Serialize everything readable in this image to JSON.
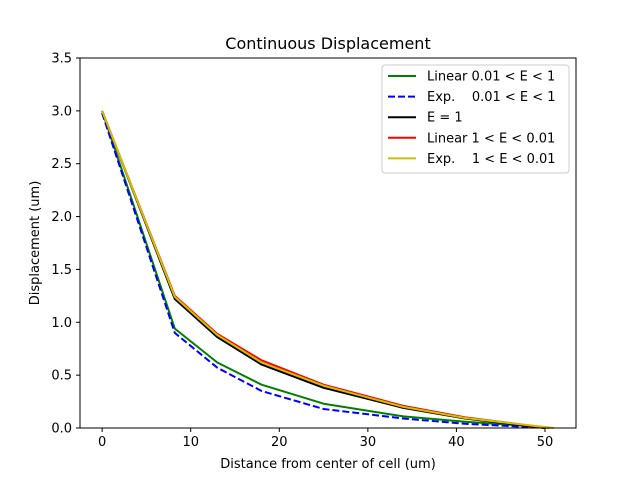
{
  "chart_data": {
    "type": "line",
    "title": "Continuous Displacement",
    "xlabel": "Distance from center of cell (um)",
    "ylabel": "Displacement (um)",
    "xlim": [
      -2.5,
      53.5
    ],
    "ylim": [
      0,
      3.5
    ],
    "xticks": [
      0,
      10,
      20,
      30,
      40,
      50
    ],
    "yticks": [
      0.0,
      0.5,
      1.0,
      1.5,
      2.0,
      2.5,
      3.0,
      3.5
    ],
    "ytick_labels": [
      "0.0",
      "0.5",
      "1.0",
      "1.5",
      "2.0",
      "2.5",
      "3.0",
      "3.5"
    ],
    "xtick_labels": [
      "0",
      "10",
      "20",
      "30",
      "40",
      "50"
    ],
    "grid": false,
    "legend_position": "top-right",
    "series": [
      {
        "name": "Linear 0.01 < E < 1",
        "color": "#008000",
        "dash": "solid",
        "x": [
          0,
          8.2,
          13,
          18,
          25,
          34,
          41,
          48,
          50
        ],
        "y": [
          3.0,
          0.94,
          0.62,
          0.41,
          0.23,
          0.11,
          0.06,
          0.02,
          0.0
        ]
      },
      {
        "name": "Exp.    0.01 < E < 1",
        "color": "#0000ff",
        "dash": "dashed",
        "x": [
          0,
          8.2,
          13,
          18,
          25,
          34,
          41,
          48,
          50
        ],
        "y": [
          2.98,
          0.9,
          0.57,
          0.35,
          0.18,
          0.09,
          0.04,
          0.01,
          0.0
        ]
      },
      {
        "name": "E = 1",
        "color": "#000000",
        "dash": "solid",
        "x": [
          0,
          8.2,
          13,
          18,
          25,
          34,
          41,
          50
        ],
        "y": [
          3.0,
          1.22,
          0.86,
          0.6,
          0.38,
          0.19,
          0.09,
          0.0
        ]
      },
      {
        "name": "Linear 1 < E < 0.01",
        "color": "#ff0000",
        "dash": "solid",
        "x": [
          0,
          8.2,
          13,
          18,
          25,
          34,
          41,
          50.5
        ],
        "y": [
          3.0,
          1.25,
          0.89,
          0.64,
          0.41,
          0.21,
          0.1,
          0.0
        ]
      },
      {
        "name": "Exp.    1 < E < 0.01",
        "color": "#cfbf00",
        "dash": "solid",
        "x": [
          0,
          8.2,
          13,
          18,
          25,
          34,
          41,
          51
        ],
        "y": [
          3.0,
          1.24,
          0.88,
          0.62,
          0.4,
          0.2,
          0.095,
          0.0
        ]
      }
    ]
  }
}
